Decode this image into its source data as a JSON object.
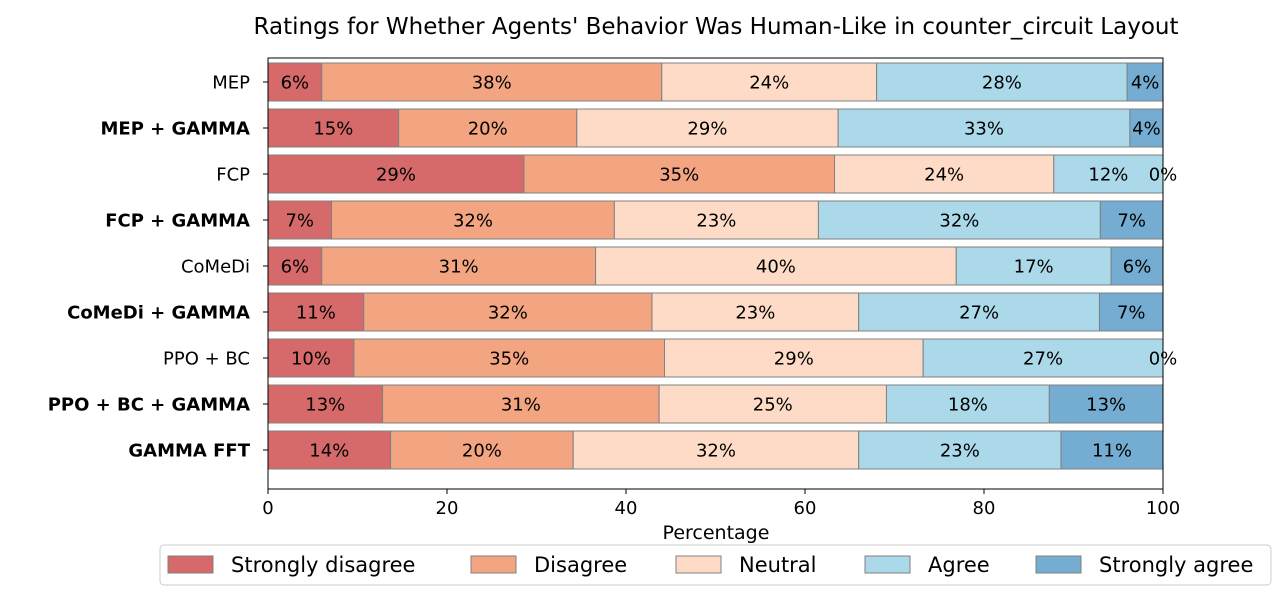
{
  "chart_data": {
    "type": "bar",
    "orientation": "horizontal",
    "stacked": true,
    "title": "Ratings for Whether Agents' Behavior Was Human-Like in counter_circuit Layout",
    "xlabel": "Percentage",
    "ylabel": "",
    "xlim": [
      0,
      100
    ],
    "x_ticks": [
      "0",
      "20",
      "40",
      "60",
      "80",
      "100"
    ],
    "grid": false,
    "legend_position": "bottom",
    "categories": [
      {
        "label": "MEP",
        "bold": false
      },
      {
        "label": "MEP + GAMMA",
        "bold": true
      },
      {
        "label": "FCP",
        "bold": false
      },
      {
        "label": "FCP + GAMMA",
        "bold": true
      },
      {
        "label": "CoMeDi",
        "bold": false
      },
      {
        "label": "CoMeDi + GAMMA",
        "bold": true
      },
      {
        "label": "PPO + BC",
        "bold": false
      },
      {
        "label": "PPO + BC + GAMMA",
        "bold": true
      },
      {
        "label": "GAMMA FFT",
        "bold": true
      }
    ],
    "series": [
      {
        "name": "Strongly disagree",
        "color": "#d6696a",
        "values": [
          6.0,
          14.6,
          28.6,
          7.1,
          6.0,
          10.7,
          9.6,
          12.8,
          13.7
        ],
        "labels": [
          "6%",
          "15%",
          "29%",
          "7%",
          "6%",
          "11%",
          "10%",
          "13%",
          "14%"
        ]
      },
      {
        "name": "Disagree",
        "color": "#f3a582",
        "values": [
          38.0,
          19.9,
          34.7,
          31.6,
          30.6,
          32.2,
          34.7,
          30.9,
          20.4
        ],
        "labels": [
          "38%",
          "20%",
          "35%",
          "32%",
          "31%",
          "32%",
          "35%",
          "31%",
          "20%"
        ]
      },
      {
        "name": "Neutral",
        "color": "#fddbc7",
        "values": [
          24.0,
          29.2,
          24.5,
          22.8,
          40.3,
          23.1,
          28.9,
          25.4,
          31.9
        ],
        "labels": [
          "24%",
          "29%",
          "24%",
          "23%",
          "40%",
          "23%",
          "29%",
          "25%",
          "32%"
        ]
      },
      {
        "name": "Agree",
        "color": "#abd9e9",
        "values": [
          28.0,
          32.6,
          12.2,
          31.5,
          17.3,
          26.9,
          26.8,
          18.2,
          22.6
        ],
        "labels": [
          "28%",
          "33%",
          "12%",
          "32%",
          "17%",
          "27%",
          "27%",
          "18%",
          "23%"
        ]
      },
      {
        "name": "Strongly agree",
        "color": "#74add1",
        "values": [
          4.0,
          3.7,
          0.0,
          7.0,
          5.8,
          7.1,
          0.0,
          12.7,
          11.4
        ],
        "labels": [
          "4%",
          "4%",
          "0%",
          "7%",
          "6%",
          "7%",
          "0%",
          "13%",
          "11%"
        ]
      }
    ]
  }
}
